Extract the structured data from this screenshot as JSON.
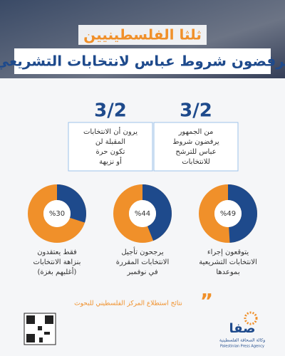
{
  "header": {
    "title": "ثلثا الفلسطينيين",
    "subtitle": "يرفضون شروط عباس لانتخابات التشريعي"
  },
  "stats": [
    {
      "value": "3/2",
      "lines": [
        "من الجمهور",
        "يرفضون شروط",
        "عباس للترشح",
        "للانتخابات"
      ]
    },
    {
      "value": "3/2",
      "lines": [
        "يرون أن الانتخابات",
        "المقبلة لن",
        "تكون حرة",
        "أو نزيهة"
      ]
    }
  ],
  "donuts": [
    {
      "value": 49,
      "label": "%49",
      "lines": [
        "يتوقعون إجراء",
        "الانتخابات التشريعية",
        "بموعدها"
      ]
    },
    {
      "value": 44,
      "label": "%44",
      "lines": [
        "يرجحون تأجيل",
        "الانتخابات المقررة",
        "في نوفمبر"
      ]
    },
    {
      "value": 30,
      "label": "%30",
      "lines": [
        "فقط يعتقدون",
        "بنزاهة الانتخابات",
        "(أغلبهم بغزة)"
      ]
    }
  ],
  "footer": {
    "source": "نتائج استطلاع المركز الفلسطيني للبحوث",
    "logo": "صفا",
    "agency_ar": "وكالة الصحافة الفلسطينية",
    "agency_en": "Palestinian Press Agency"
  }
}
